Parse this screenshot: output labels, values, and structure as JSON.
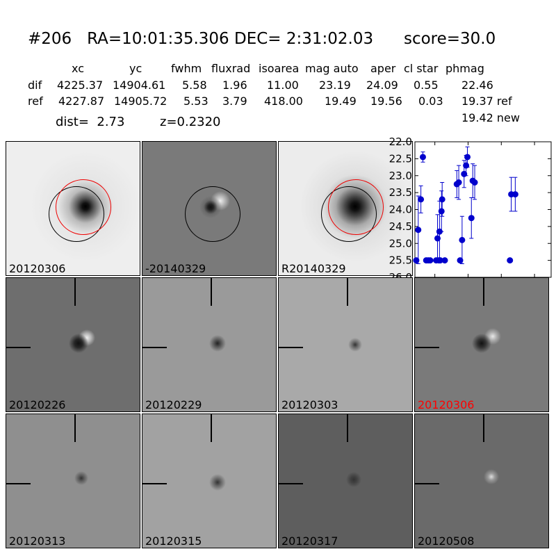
{
  "header": {
    "title": "#206   RA=10:01:35.306 DEC= 2:31:02.03      score=30.0",
    "columns": [
      "xc",
      "yc",
      "fwhm",
      "fluxrad",
      "isoarea",
      "mag auto",
      "aper",
      "cl star",
      "phmag"
    ],
    "rows": [
      {
        "label": "dif",
        "values": [
          "4225.37",
          "14904.61",
          "5.58",
          "1.96",
          "11.00",
          "23.19",
          "24.09",
          "0.55",
          "22.46"
        ]
      },
      {
        "label": "ref",
        "values": [
          "4227.87",
          "14905.72",
          "5.53",
          "3.79",
          "418.00",
          "19.49",
          "19.56",
          "0.03",
          "19.37 ref"
        ]
      }
    ],
    "extra_phmag": "19.42 new",
    "dist": "dist=  2.73",
    "z": "z=0.2320"
  },
  "top_panels": [
    {
      "label": "20120306",
      "color": "#000000"
    },
    {
      "label": "-20140329",
      "color": "#000000"
    },
    {
      "label": "R20140329",
      "color": "#000000"
    }
  ],
  "stamps": [
    {
      "label": "20120226",
      "color": "#000000"
    },
    {
      "label": "20120229",
      "color": "#000000"
    },
    {
      "label": "20120303",
      "color": "#000000"
    },
    {
      "label": "20120306",
      "color": "#ff0000"
    },
    {
      "label": "20120313",
      "color": "#000000"
    },
    {
      "label": "20120315",
      "color": "#000000"
    },
    {
      "label": "20120317",
      "color": "#000000"
    },
    {
      "label": "20120508",
      "color": "#000000"
    }
  ],
  "chart_data": {
    "type": "scatter",
    "title": "",
    "xlabel": "",
    "ylabel": "",
    "xlim": [
      -80,
      125
    ],
    "ylim": [
      26.0,
      22.0
    ],
    "y_inverted": true,
    "x_ticks": [
      "-50",
      "0",
      "50",
      "100"
    ],
    "y_ticks": [
      "22.0",
      "22.5",
      "23.0",
      "23.5",
      "24.0",
      "24.5",
      "25.0",
      "25.5",
      "26.0"
    ],
    "color": "#0000cc",
    "points": [
      {
        "x": -78,
        "y": 25.5,
        "err": 0
      },
      {
        "x": -75,
        "y": 24.6,
        "err": 1.0
      },
      {
        "x": -71,
        "y": 23.7,
        "err": 0.4
      },
      {
        "x": -68,
        "y": 22.45,
        "err": 0.15
      },
      {
        "x": -63,
        "y": 25.5,
        "err": 0
      },
      {
        "x": -60,
        "y": 25.5,
        "err": 0
      },
      {
        "x": -57,
        "y": 25.5,
        "err": 0
      },
      {
        "x": -48,
        "y": 25.5,
        "err": 0
      },
      {
        "x": -46,
        "y": 24.85,
        "err": 0.7
      },
      {
        "x": -44,
        "y": 25.5,
        "err": 0
      },
      {
        "x": -43,
        "y": 24.65,
        "err": 0.9
      },
      {
        "x": -42,
        "y": 25.5,
        "err": 0
      },
      {
        "x": -40,
        "y": 24.05,
        "err": 0.6
      },
      {
        "x": -39,
        "y": 23.7,
        "err": 0.5
      },
      {
        "x": -35,
        "y": 25.5,
        "err": 0
      },
      {
        "x": -17,
        "y": 23.25,
        "err": 0.4
      },
      {
        "x": -14,
        "y": 23.2,
        "err": 0.5
      },
      {
        "x": -12,
        "y": 25.5,
        "err": 0
      },
      {
        "x": -9,
        "y": 24.9,
        "err": 0.7
      },
      {
        "x": -6,
        "y": 22.95,
        "err": 0.4
      },
      {
        "x": -3,
        "y": 22.7,
        "err": 0.3
      },
      {
        "x": -1,
        "y": 22.45,
        "err": 0.3
      },
      {
        "x": 5,
        "y": 24.25,
        "err": 0.6
      },
      {
        "x": 7,
        "y": 23.15,
        "err": 0.5
      },
      {
        "x": 10,
        "y": 23.2,
        "err": 0.5
      },
      {
        "x": 63,
        "y": 25.5,
        "err": 0
      },
      {
        "x": 65,
        "y": 23.55,
        "err": 0.5
      },
      {
        "x": 71,
        "y": 23.55,
        "err": 0.5
      }
    ]
  }
}
